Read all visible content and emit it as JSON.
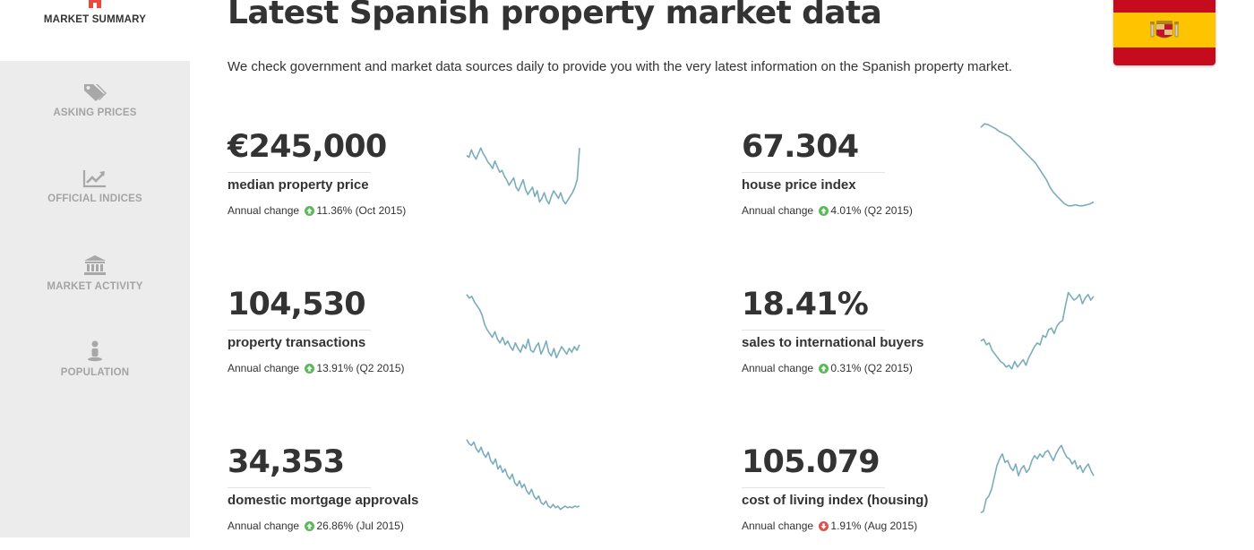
{
  "sidebar": {
    "items": [
      {
        "label": "MARKET SUMMARY",
        "icon": "home-icon",
        "active": true
      },
      {
        "label": "ASKING PRICES",
        "icon": "tags-icon",
        "active": false
      },
      {
        "label": "OFFICIAL INDICES",
        "icon": "line-chart-icon",
        "active": false
      },
      {
        "label": "MARKET ACTIVITY",
        "icon": "bank-icon",
        "active": false
      },
      {
        "label": "POPULATION",
        "icon": "person-icon",
        "active": false
      }
    ]
  },
  "header": {
    "title": "Latest Spanish property market data",
    "intro": "We check government and market data sources daily to provide you with the very latest information on the Spanish property market.",
    "flag": {
      "icon": "spain-flag-icon",
      "colors": {
        "red": "#c60b1e",
        "yellow": "#ffc400"
      }
    }
  },
  "colors": {
    "accent": "#e84b3c",
    "sparkline": "#7aadbb",
    "up": "#5cb85c",
    "down": "#d9534f"
  },
  "metrics": [
    {
      "value": "€245,000",
      "label": "median property price",
      "change_prefix": "Annual change",
      "change": "11.36% (Oct 2015)",
      "direction": "up"
    },
    {
      "value": "67.304",
      "label": "house price index",
      "change_prefix": "Annual change",
      "change": "4.01% (Q2 2015)",
      "direction": "up"
    },
    {
      "value": "104,530",
      "label": "property transactions",
      "change_prefix": "Annual change",
      "change": "13.91% (Q2 2015)",
      "direction": "up"
    },
    {
      "value": "18.41%",
      "label": "sales to international buyers",
      "change_prefix": "Annual change",
      "change": "0.31% (Q2 2015)",
      "direction": "up"
    },
    {
      "value": "34,353",
      "label": "domestic mortgage approvals",
      "change_prefix": "Annual change",
      "change": "26.86% (Jul 2015)",
      "direction": "up"
    },
    {
      "value": "105.079",
      "label": "cost of living index (housing)",
      "change_prefix": "Annual change",
      "change": "1.91% (Aug 2015)",
      "direction": "down"
    }
  ],
  "sparklines": [
    [
      62,
      60,
      68,
      62,
      58,
      64,
      70,
      64,
      60,
      55,
      52,
      48,
      56,
      50,
      44,
      46,
      40,
      36,
      30,
      34,
      38,
      28,
      24,
      30,
      36,
      26,
      20,
      24,
      28,
      18,
      24,
      12,
      16,
      22,
      14,
      10,
      18,
      24,
      20,
      16,
      22,
      14,
      10,
      14,
      18,
      22,
      28,
      36,
      70
    ],
    [
      92,
      96,
      95,
      93,
      91,
      88,
      86,
      84,
      82,
      78,
      74,
      70,
      66,
      62,
      58,
      54,
      48,
      42,
      36,
      28,
      22,
      18,
      14,
      10,
      8,
      8,
      9,
      8,
      8,
      9,
      10,
      12
    ],
    [
      82,
      78,
      80,
      74,
      70,
      66,
      60,
      50,
      44,
      40,
      36,
      42,
      34,
      30,
      36,
      28,
      32,
      26,
      22,
      30,
      24,
      20,
      28,
      24,
      34,
      22,
      20,
      26,
      30,
      18,
      24,
      32,
      20,
      16,
      24,
      14,
      20,
      26,
      22,
      18,
      24,
      20,
      26,
      22,
      28
    ],
    [
      32,
      34,
      28,
      30,
      22,
      18,
      14,
      10,
      8,
      4,
      6,
      2,
      10,
      4,
      8,
      12,
      6,
      14,
      20,
      26,
      30,
      28,
      38,
      36,
      44,
      46,
      40,
      48,
      52,
      54,
      70,
      84,
      80,
      76,
      78,
      82,
      72,
      78,
      82,
      76,
      80
    ],
    [
      95,
      90,
      88,
      92,
      84,
      80,
      86,
      78,
      74,
      80,
      70,
      66,
      72,
      60,
      64,
      56,
      60,
      52,
      48,
      54,
      44,
      40,
      46,
      38,
      42,
      34,
      30,
      36,
      28,
      24,
      28,
      20,
      18,
      22,
      16,
      14,
      18,
      14,
      16,
      12,
      14,
      16,
      14,
      15,
      14,
      16,
      15,
      16
    ],
    [
      8,
      10,
      24,
      28,
      36,
      50,
      64,
      72,
      78,
      68,
      70,
      62,
      58,
      66,
      52,
      60,
      64,
      56,
      60,
      70,
      76,
      72,
      78,
      74,
      80,
      82,
      76,
      70,
      78,
      84,
      88,
      80,
      74,
      72,
      66,
      70,
      60,
      64,
      56,
      62,
      66,
      58,
      52
    ]
  ]
}
